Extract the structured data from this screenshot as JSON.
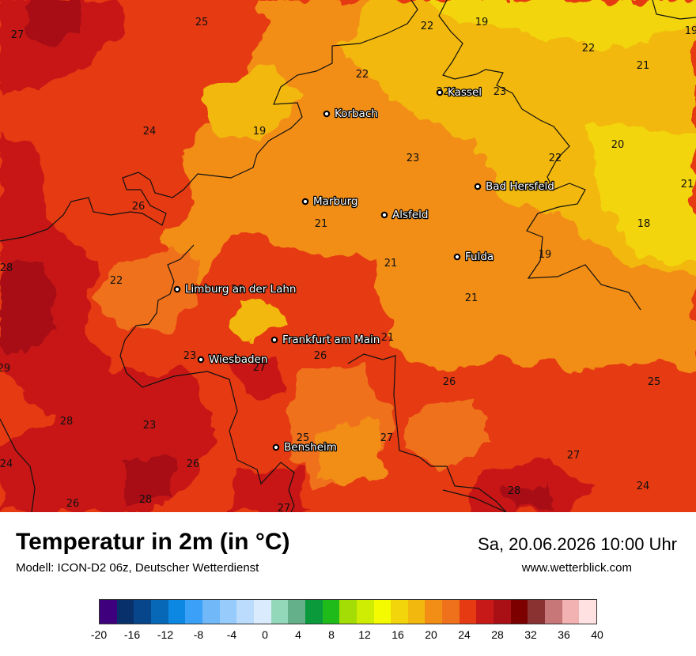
{
  "title": "Temperatur in 2m (in °C)",
  "model": "Modell: ICON-D2 06z, Deutscher Wetterdienst",
  "datetime": "Sa, 20.06.2026 10:00 Uhr",
  "site": "www.wetterblick.com",
  "cities": [
    {
      "name": "Kassel"
    },
    {
      "name": "Korbach"
    },
    {
      "name": "Bad Hersfeld"
    },
    {
      "name": "Marburg"
    },
    {
      "name": "Alsfeld"
    },
    {
      "name": "Fulda"
    },
    {
      "name": "Limburg an der Lahn"
    },
    {
      "name": "Frankfurt am Main"
    },
    {
      "name": "Wiesbaden"
    },
    {
      "name": "Bensheim"
    }
  ],
  "temperatures": [
    "27",
    "25",
    "22",
    "19",
    "22",
    "19",
    "22",
    "21",
    "22",
    "23",
    "19",
    "24",
    "23",
    "20",
    "22",
    "21",
    "26",
    "21",
    "18",
    "21",
    "21",
    "19",
    "28",
    "22",
    "26",
    "21",
    "26",
    "23",
    "27",
    "26",
    "29",
    "25",
    "25",
    "27",
    "28",
    "23",
    "26",
    "24",
    "27",
    "26",
    "28",
    "28",
    "27",
    "24"
  ],
  "legend": {
    "colors": [
      "#3f007d",
      "#08306b",
      "#08468c",
      "#0868b8",
      "#0c88e3",
      "#3aa0f8",
      "#71b8f9",
      "#97cbfb",
      "#bbdcfc",
      "#daebfd",
      "#93d8b8",
      "#63b08a",
      "#0a9a3c",
      "#1fbb1a",
      "#a4dc05",
      "#cfed03",
      "#f4fa00",
      "#f2d50a",
      "#f2b80e",
      "#f28e16",
      "#ef711c",
      "#e63a12",
      "#c81919",
      "#a81016",
      "#7d0000",
      "#8a3131",
      "#c77777",
      "#f2b2b2",
      "#ffe1e1"
    ],
    "ticks": [
      "-20",
      "-16",
      "-12",
      "-8",
      "-4",
      "0",
      "4",
      "8",
      "12",
      "16",
      "20",
      "24",
      "28",
      "32",
      "36",
      "40"
    ]
  }
}
